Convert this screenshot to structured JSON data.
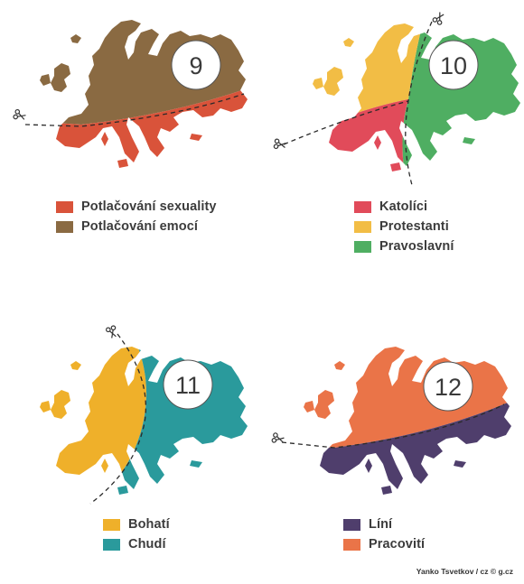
{
  "panels": [
    {
      "number": "9",
      "legend": [
        {
          "label": "Potlačování sexuality",
          "color": "#d9533a"
        },
        {
          "label": "Potlačování emocí",
          "color": "#8a6a42"
        }
      ]
    },
    {
      "number": "10",
      "legend": [
        {
          "label": "Katolíci",
          "color": "#e14b5a"
        },
        {
          "label": "Protestanti",
          "color": "#f2bd45"
        },
        {
          "label": "Pravoslavní",
          "color": "#4fae62"
        }
      ]
    },
    {
      "number": "11",
      "legend": [
        {
          "label": "Bohatí",
          "color": "#efb02a"
        },
        {
          "label": "Chudí",
          "color": "#2a9a9c"
        }
      ]
    },
    {
      "number": "12",
      "legend": [
        {
          "label": "Líní",
          "color": "#4f3e6c"
        },
        {
          "label": "Pracovití",
          "color": "#ea7448"
        }
      ]
    }
  ],
  "credit": "Yanko Tsvetkov / cz © g.cz",
  "icons": [
    "scissors-icon"
  ]
}
